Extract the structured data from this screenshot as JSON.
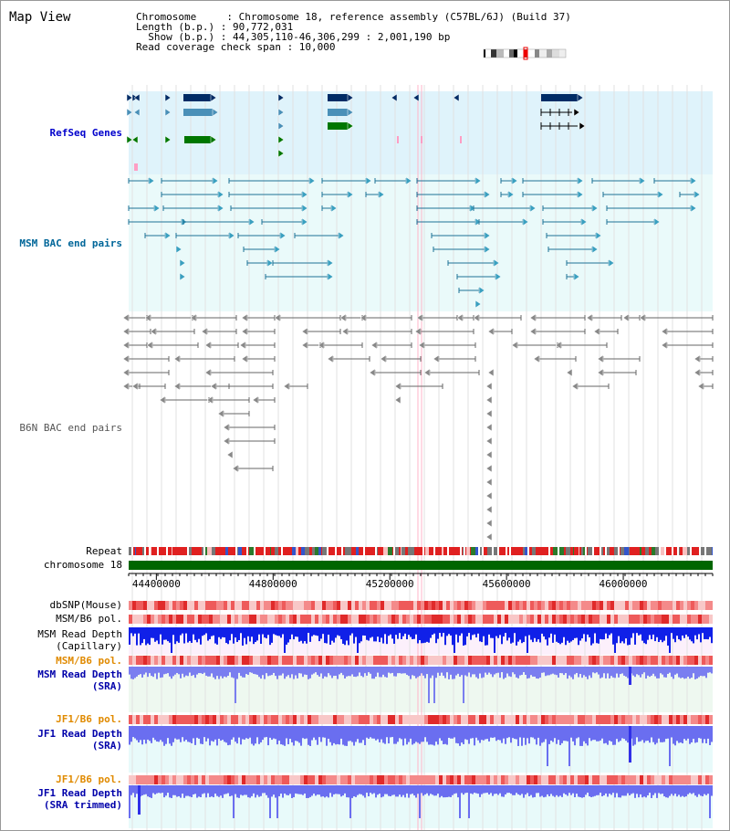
{
  "title": "Map View",
  "header": {
    "line1": "Chromosome     : Chromosome 18, reference assembly (C57BL/6J) (Build 37)",
    "line2": "Length (b.p.) : 90,772,031",
    "line3": "  Show (b.p.) : 44,305,110-46,306,299 : 2,001,190 bp",
    "line4": "Read coverage check span : 10,000"
  },
  "tracks": {
    "refseq": "RefSeq Genes",
    "msm_bac": "MSM BAC end pairs",
    "b6n_bac": "B6N BAC end pairs",
    "repeat": "Repeat",
    "chromosome": "chromosome 18",
    "dbsnp": "dbSNP(Mouse)",
    "msm_b6_pol1": "MSM/B6 pol.",
    "msm_depth_cap": "MSM Read Depth\n(Capillary)",
    "msm_b6_pol2": "MSM/B6 pol.",
    "msm_depth_sra": "MSM Read Depth\n(SRA)",
    "jf1_b6_pol1": "JF1/B6 pol.",
    "jf1_depth_sra": "JF1 Read Depth\n(SRA)",
    "jf1_b6_pol2": "JF1/B6 pol.",
    "jf1_depth_trim": "JF1 Read Depth\n(SRA trimmed)"
  },
  "axis": {
    "ticks": [
      "44400000",
      "44800000",
      "45200000",
      "45600000",
      "46000000"
    ],
    "view_start": 44305110,
    "view_end": 46306299
  },
  "colors": {
    "refseq_label": "#0000cc",
    "msm_label": "#006699",
    "orange_label": "#e08a00",
    "blue_label": "#0000aa",
    "refseq_bg": "#dff3fb",
    "msm_bg": "#eafafa",
    "chromosome_bar": "#006600"
  }
}
